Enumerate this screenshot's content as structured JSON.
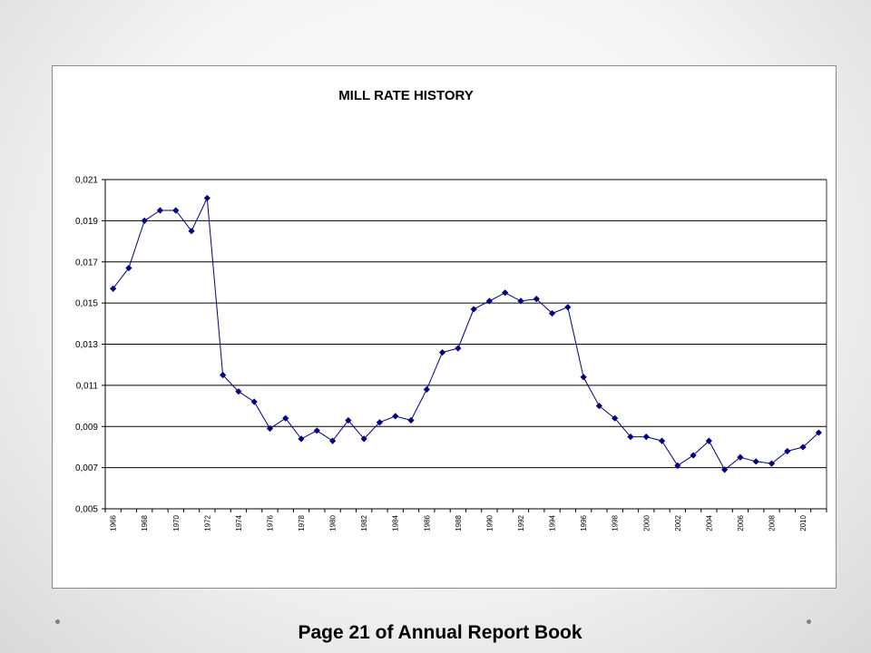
{
  "footer": {
    "caption": "Page 21 of Annual Report Book"
  },
  "colors": {
    "series": "#000080",
    "grid": "#000000",
    "decor_dots": "#808080"
  },
  "chart_data": {
    "type": "line",
    "title": "MILL RATE HISTORY",
    "xlabel": "",
    "ylabel": "",
    "ylim": [
      0.005,
      0.021
    ],
    "y_ticks": [
      "0,005",
      "0,007",
      "0,009",
      "0,011",
      "0,013",
      "0,015",
      "0,017",
      "0,019",
      "0,021"
    ],
    "x_tick_labels": [
      "1966",
      "1968",
      "1970",
      "1972",
      "1974",
      "1976",
      "1978",
      "1980",
      "1982",
      "1984",
      "1986",
      "1988",
      "1990",
      "1992",
      "1994",
      "1996",
      "1998",
      "2000",
      "2002",
      "2004",
      "2006",
      "2008",
      "2010"
    ],
    "grid": "horizontal",
    "legend": "none",
    "marker": "diamond",
    "x": [
      1966,
      1967,
      1968,
      1969,
      1970,
      1971,
      1972,
      1973,
      1974,
      1975,
      1976,
      1977,
      1978,
      1979,
      1980,
      1981,
      1982,
      1983,
      1984,
      1985,
      1986,
      1987,
      1988,
      1989,
      1990,
      1991,
      1992,
      1993,
      1994,
      1995,
      1996,
      1997,
      1998,
      1999,
      2000,
      2001,
      2002,
      2003,
      2004,
      2005,
      2006,
      2007,
      2008,
      2009,
      2010,
      2011
    ],
    "series": [
      {
        "values": [
          0.0157,
          0.0167,
          0.019,
          0.0195,
          0.0195,
          0.0185,
          0.0201,
          0.0115,
          0.0107,
          0.0102,
          0.0089,
          0.0094,
          0.0084,
          0.0088,
          0.0083,
          0.0093,
          0.0084,
          0.0092,
          0.0095,
          0.0093,
          0.0108,
          0.0126,
          0.0128,
          0.0147,
          0.0151,
          0.0155,
          0.0151,
          0.0152,
          0.0145,
          0.0148,
          0.0114,
          0.01,
          0.0094,
          0.0085,
          0.0085,
          0.0083,
          0.0071,
          0.0076,
          0.0083,
          0.0069,
          0.0075,
          0.0073,
          0.0072,
          0.0078,
          0.008,
          0.0087
        ]
      }
    ]
  }
}
